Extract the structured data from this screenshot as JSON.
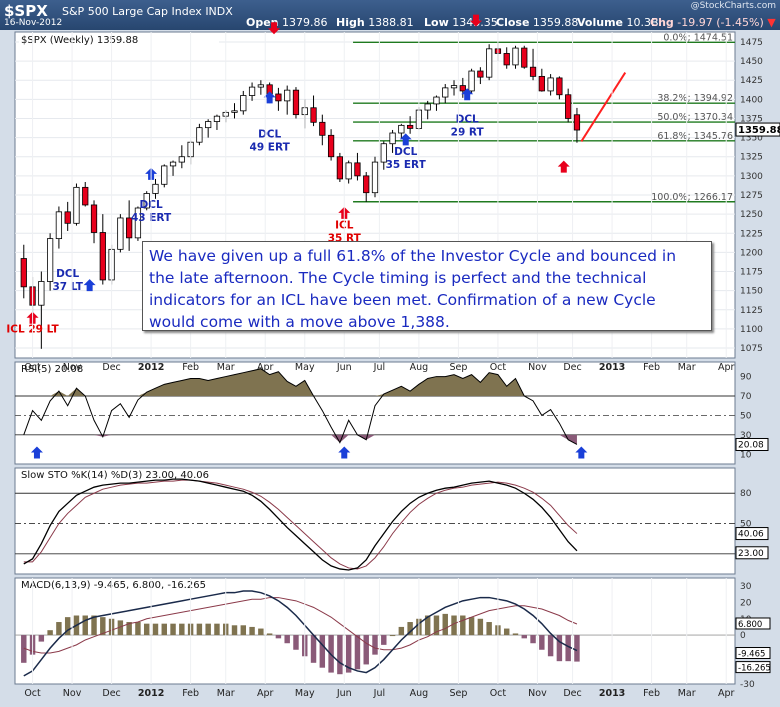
{
  "header": {
    "symbol": "$SPX",
    "name": "S&P 500 Large Cap Index",
    "exchange": "INDX",
    "date": "16-Nov-2012",
    "open_label": "Open",
    "open": "1379.86",
    "high_label": "High",
    "high": "1388.81",
    "low_label": "Low",
    "low": "1343.35",
    "close_label": "Close",
    "close": "1359.88",
    "volume_label": "Volume",
    "volume": "10.3B",
    "chg_label": "Chg",
    "chg": "-19.97 (-1.45%)",
    "chg_arrow": "▼"
  },
  "watermark": "@StockCharts.com",
  "annotation": "We have given up a full 61.8% of the Investor Cycle and bounced in the late afternoon.  The Cycle timing is perfect and the technical indicators for an ICL have been met.  Confirmation of a new Cycle would come with a move above 1,388.",
  "colors": {
    "up": "#ffffff",
    "down": "#e8001c",
    "fib": "#1f7a1f",
    "rsi_fill": "#7f7350",
    "blue_arrow": "#1a3fd8",
    "red_arrow": "#e8001c",
    "trend": "#ff2020"
  },
  "chart_data": [
    {
      "type": "candlestick",
      "legend": "$SPX (Weekly) 1359.88",
      "y_ticks": [
        1075,
        1100,
        1125,
        1150,
        1175,
        1200,
        1225,
        1250,
        1275,
        1300,
        1325,
        1350,
        1375,
        1400,
        1425,
        1450,
        1475
      ],
      "ylim": [
        1062,
        1488
      ],
      "last_value": "1359.88",
      "x_labels": [
        {
          "label": "Oct",
          "w": 2
        },
        {
          "label": "Nov",
          "w": 6.5
        },
        {
          "label": "Dec",
          "w": 11
        },
        {
          "label": "2012",
          "w": 15.5,
          "bold": true
        },
        {
          "label": "Feb",
          "w": 20
        },
        {
          "label": "Mar",
          "w": 24
        },
        {
          "label": "Apr",
          "w": 28.5
        },
        {
          "label": "May",
          "w": 33
        },
        {
          "label": "Jun",
          "w": 37.5
        },
        {
          "label": "Jul",
          "w": 41.5
        },
        {
          "label": "Aug",
          "w": 46
        },
        {
          "label": "Sep",
          "w": 50.5
        },
        {
          "label": "Oct",
          "w": 55
        },
        {
          "label": "Nov",
          "w": 59.5
        },
        {
          "label": "Dec",
          "w": 63.5
        },
        {
          "label": "2013",
          "w": 68,
          "bold": true
        },
        {
          "label": "Feb",
          "w": 72.5
        },
        {
          "label": "Mar",
          "w": 76.5
        },
        {
          "label": "Apr",
          "w": 81
        }
      ],
      "candles": [
        [
          1192,
          1210,
          1140,
          1155
        ],
        [
          1155,
          1168,
          1120,
          1131
        ],
        [
          1131,
          1175,
          1074,
          1162
        ],
        [
          1162,
          1225,
          1150,
          1218
        ],
        [
          1218,
          1260,
          1205,
          1253
        ],
        [
          1253,
          1266,
          1228,
          1238
        ],
        [
          1238,
          1290,
          1235,
          1285
        ],
        [
          1285,
          1292,
          1260,
          1262
        ],
        [
          1262,
          1268,
          1212,
          1226
        ],
        [
          1226,
          1250,
          1158,
          1164
        ],
        [
          1164,
          1210,
          1158,
          1204
        ],
        [
          1204,
          1250,
          1200,
          1245
        ],
        [
          1245,
          1268,
          1202,
          1219
        ],
        [
          1219,
          1260,
          1215,
          1258
        ],
        [
          1258,
          1280,
          1255,
          1277
        ],
        [
          1277,
          1296,
          1270,
          1289
        ],
        [
          1289,
          1315,
          1285,
          1313
        ],
        [
          1313,
          1320,
          1300,
          1318
        ],
        [
          1318,
          1340,
          1310,
          1325
        ],
        [
          1325,
          1346,
          1315,
          1344
        ],
        [
          1344,
          1368,
          1340,
          1363
        ],
        [
          1363,
          1374,
          1350,
          1371
        ],
        [
          1371,
          1380,
          1360,
          1378
        ],
        [
          1378,
          1386,
          1370,
          1383
        ],
        [
          1383,
          1395,
          1375,
          1385
        ],
        [
          1385,
          1411,
          1380,
          1405
        ],
        [
          1405,
          1422,
          1398,
          1416
        ],
        [
          1416,
          1425,
          1406,
          1419
        ],
        [
          1419,
          1422,
          1395,
          1407
        ],
        [
          1407,
          1415,
          1385,
          1398
        ],
        [
          1398,
          1418,
          1380,
          1412
        ],
        [
          1412,
          1416,
          1375,
          1380
        ],
        [
          1380,
          1400,
          1362,
          1389
        ],
        [
          1389,
          1405,
          1365,
          1370
        ],
        [
          1370,
          1380,
          1340,
          1353
        ],
        [
          1353,
          1361,
          1320,
          1325
        ],
        [
          1325,
          1330,
          1292,
          1296
        ],
        [
          1296,
          1320,
          1290,
          1317
        ],
        [
          1317,
          1330,
          1294,
          1300
        ],
        [
          1300,
          1305,
          1266,
          1278
        ],
        [
          1278,
          1325,
          1272,
          1318
        ],
        [
          1318,
          1345,
          1308,
          1342
        ],
        [
          1342,
          1360,
          1330,
          1356
        ],
        [
          1356,
          1368,
          1348,
          1366
        ],
        [
          1366,
          1378,
          1355,
          1362
        ],
        [
          1362,
          1390,
          1360,
          1386
        ],
        [
          1386,
          1398,
          1374,
          1394
        ],
        [
          1394,
          1405,
          1385,
          1403
        ],
        [
          1403,
          1420,
          1395,
          1415
        ],
        [
          1415,
          1425,
          1405,
          1418
        ],
        [
          1418,
          1428,
          1402,
          1411
        ],
        [
          1411,
          1440,
          1408,
          1437
        ],
        [
          1437,
          1442,
          1420,
          1429
        ],
        [
          1429,
          1472,
          1425,
          1466
        ],
        [
          1466,
          1475,
          1450,
          1460
        ],
        [
          1460,
          1468,
          1440,
          1445
        ],
        [
          1445,
          1470,
          1440,
          1467
        ],
        [
          1467,
          1470,
          1440,
          1442
        ],
        [
          1442,
          1466,
          1425,
          1430
        ],
        [
          1430,
          1440,
          1410,
          1411
        ],
        [
          1411,
          1433,
          1405,
          1428
        ],
        [
          1428,
          1430,
          1400,
          1406
        ],
        [
          1406,
          1414,
          1370,
          1375
        ],
        [
          1379.86,
          1388.81,
          1343.35,
          1359.88
        ]
      ],
      "fib_levels": [
        {
          "value": 1474.51,
          "label": "0.0%; 1474.51"
        },
        {
          "value": 1394.92,
          "label": "38.2%; 1394.92"
        },
        {
          "value": 1370.34,
          "label": "50.0%; 1370.34"
        },
        {
          "value": 1345.76,
          "label": "61.8%; 1345.76"
        },
        {
          "value": 1266.17,
          "label": "100.0%; 1266.17"
        }
      ],
      "annotations": [
        {
          "text": "ICL 29 LT",
          "w": 2,
          "y": 1095,
          "color": "red",
          "arrow": "up",
          "arrow_y": 1112
        },
        {
          "text": "DCL\n37 LT",
          "w": 6,
          "y": 1168,
          "color": "blue",
          "arrow": null
        },
        {
          "text": "DCL\n43 ERT",
          "w": 15.5,
          "y": 1258,
          "color": "blue",
          "arrow": "up",
          "arrow_y": 1300
        },
        {
          "text": "DCL\n49 ERT",
          "w": 29,
          "y": 1350,
          "color": "blue",
          "arrow": "up",
          "arrow_y": 1400
        },
        {
          "text": "ICL\n35 RT",
          "w": 37.5,
          "y": 1231,
          "color": "red",
          "arrow": "up",
          "arrow_y": 1249
        },
        {
          "text": "DCL\n35 ERT",
          "w": 44.5,
          "y": 1327,
          "color": "blue",
          "arrow": "up",
          "arrow_y": 1345
        },
        {
          "text": "DCL\n29 RT",
          "w": 51.5,
          "y": 1370,
          "color": "blue",
          "arrow": "up",
          "arrow_y": 1404
        }
      ],
      "extra_arrows": [
        {
          "w": 8.5,
          "y": 1165,
          "dir": "up",
          "color": "blue"
        },
        {
          "w": 29.5,
          "y": 1485,
          "dir": "down",
          "color": "red"
        },
        {
          "w": 52.5,
          "y": 1495,
          "dir": "down",
          "color": "red"
        },
        {
          "w": 62.5,
          "y": 1320,
          "dir": "up",
          "color": "red"
        }
      ],
      "trendline": [
        [
          64.5,
          1345
        ],
        [
          69.5,
          1435
        ]
      ]
    },
    {
      "type": "line",
      "legend": "RSI(5) 20.08",
      "ylim": [
        0,
        105
      ],
      "y_ticks": [
        10,
        30,
        50,
        70,
        90
      ],
      "levels": [
        30,
        50,
        70
      ],
      "last_value": "20.08",
      "values": [
        30,
        55,
        45,
        65,
        75,
        60,
        78,
        70,
        45,
        28,
        55,
        62,
        48,
        66,
        74,
        78,
        82,
        84,
        86,
        88,
        88,
        86,
        88,
        90,
        92,
        94,
        96,
        98,
        92,
        95,
        85,
        80,
        86,
        70,
        55,
        38,
        22,
        45,
        30,
        25,
        60,
        72,
        76,
        80,
        75,
        82,
        88,
        90,
        90,
        92,
        88,
        92,
        84,
        94,
        92,
        80,
        88,
        70,
        65,
        50,
        56,
        42,
        25,
        20.08
      ],
      "markers": [
        {
          "w": 2.5,
          "dir": "up"
        },
        {
          "w": 37.5,
          "dir": "up"
        },
        {
          "w": 64.5,
          "dir": "up"
        }
      ]
    },
    {
      "type": "line",
      "legend": "Slow STO %K(14) %D(3) 23.00, 40.06",
      "ylim": [
        0,
        105
      ],
      "y_ticks": [
        20,
        50,
        80
      ],
      "levels": [
        20,
        50,
        80
      ],
      "last_values": [
        "40.06",
        "23.00"
      ],
      "k": [
        10,
        15,
        30,
        48,
        62,
        70,
        78,
        82,
        86,
        88,
        89,
        90,
        90,
        91,
        92,
        93,
        93,
        94,
        94,
        93,
        92,
        90,
        88,
        86,
        84,
        82,
        78,
        72,
        64,
        55,
        46,
        38,
        30,
        22,
        14,
        8,
        5,
        4,
        6,
        14,
        28,
        40,
        52,
        62,
        70,
        76,
        80,
        83,
        85,
        86,
        88,
        90,
        91,
        92,
        90,
        88,
        85,
        80,
        74,
        66,
        56,
        44,
        32,
        23.0
      ],
      "d": [
        12,
        12,
        22,
        36,
        50,
        60,
        68,
        76,
        80,
        84,
        86,
        88,
        89,
        90,
        90,
        91,
        92,
        92,
        93,
        93,
        92,
        91,
        90,
        88,
        86,
        84,
        81,
        77,
        71,
        64,
        56,
        48,
        40,
        32,
        24,
        16,
        10,
        6,
        5,
        8,
        16,
        27,
        40,
        51,
        61,
        69,
        75,
        80,
        83,
        85,
        86,
        88,
        89,
        90,
        91,
        90,
        88,
        85,
        81,
        75,
        68,
        58,
        48,
        40.06
      ]
    },
    {
      "type": "macd",
      "legend": "MACD(6,13,9) -9.465, 6.800, -16.265",
      "ylim": [
        -30,
        35
      ],
      "y_ticks": [
        -30,
        -20,
        -10,
        0,
        10,
        20,
        30
      ],
      "last_values": [
        "6.800",
        "-9.465",
        "-16.265"
      ],
      "macd": [
        -25,
        -22,
        -15,
        -8,
        -2,
        3,
        6,
        9,
        11,
        12,
        13,
        14,
        15,
        16,
        17,
        18,
        19,
        20,
        21,
        22,
        23,
        24,
        25,
        26,
        26,
        27,
        27,
        26,
        24,
        21,
        17,
        12,
        6,
        0,
        -6,
        -12,
        -17,
        -20,
        -22,
        -23,
        -20,
        -15,
        -9,
        -3,
        2,
        7,
        11,
        14,
        17,
        19,
        21,
        22,
        23,
        23,
        22,
        21,
        19,
        16,
        12,
        7,
        1,
        -4,
        -7,
        -9.465
      ],
      "signal": [
        -8,
        -10,
        -11,
        -11,
        -10,
        -8,
        -6,
        -3,
        -1,
        1,
        3,
        5,
        7,
        8,
        10,
        11,
        12,
        13,
        14,
        15,
        16,
        17,
        18,
        19,
        20,
        21,
        22,
        22,
        23,
        23,
        22,
        21,
        19,
        17,
        14,
        11,
        7,
        3,
        -1,
        -5,
        -8,
        -9,
        -9,
        -8,
        -6,
        -3,
        -1,
        2,
        4,
        7,
        9,
        11,
        13,
        15,
        16,
        17,
        18,
        18,
        17,
        16,
        14,
        12,
        9,
        6.8
      ]
    }
  ]
}
